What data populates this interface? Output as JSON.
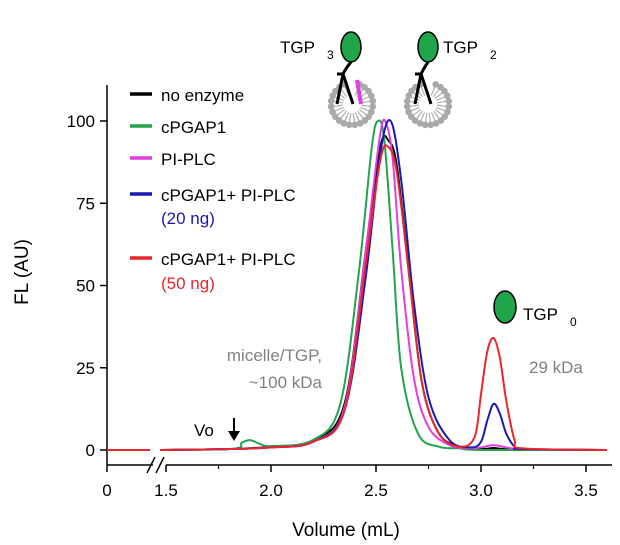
{
  "chart_data": {
    "type": "line",
    "xlabel": "Volume (mL)",
    "ylabel": "FL (AU)",
    "xlim": [
      0,
      3.6
    ],
    "ylim": [
      0,
      108
    ],
    "axis_break": {
      "between": [
        0,
        1.5
      ]
    },
    "xticks": [
      {
        "value": 0,
        "label": "0"
      },
      {
        "value": 1.5,
        "label": "1.5"
      },
      {
        "value": 2.0,
        "label": "2.0"
      },
      {
        "value": 2.5,
        "label": "2.5"
      },
      {
        "value": 3.0,
        "label": "3.0"
      },
      {
        "value": 3.5,
        "label": "3.5"
      }
    ],
    "yticks": [
      {
        "value": 0,
        "label": "0"
      },
      {
        "value": 25,
        "label": "25"
      },
      {
        "value": 50,
        "label": "50"
      },
      {
        "value": 75,
        "label": "75"
      },
      {
        "value": 100,
        "label": "100"
      }
    ],
    "grid": false,
    "legend_position": "top-left",
    "series": [
      {
        "name": "no enzyme",
        "color": "#000000",
        "x": [
          0,
          1.5,
          1.8,
          2.0,
          2.2,
          2.35,
          2.45,
          2.52,
          2.56,
          2.6,
          2.66,
          2.72,
          2.8,
          2.9,
          3.0,
          3.06,
          3.1,
          3.2,
          3.3,
          3.4,
          3.6
        ],
        "y": [
          0,
          0,
          0.3,
          1,
          3,
          14,
          60,
          92,
          94,
          86,
          52,
          20,
          5,
          1,
          0.3,
          0.6,
          0.3,
          0.2,
          0,
          0,
          0
        ]
      },
      {
        "name": "cPGAP1",
        "color": "#22a34c",
        "x": [
          0,
          1.5,
          1.82,
          1.86,
          1.9,
          1.95,
          2.0,
          2.2,
          2.33,
          2.42,
          2.48,
          2.51,
          2.54,
          2.58,
          2.62,
          2.7,
          2.8,
          2.9,
          3.0,
          3.6
        ],
        "y": [
          0,
          0,
          0.4,
          2.2,
          3,
          1.8,
          1.2,
          3,
          14,
          55,
          92,
          100,
          94,
          60,
          25,
          5,
          1,
          0.5,
          0,
          0
        ]
      },
      {
        "name": "PI-PLC",
        "color": "#e33fe0",
        "x": [
          0,
          1.5,
          1.8,
          2.0,
          2.2,
          2.35,
          2.45,
          2.52,
          2.55,
          2.58,
          2.62,
          2.68,
          2.75,
          2.85,
          2.95,
          3.0,
          3.06,
          3.12,
          3.2,
          3.6
        ],
        "y": [
          0,
          0,
          0.3,
          0.8,
          2.5,
          13,
          60,
          96,
          99,
          88,
          55,
          22,
          7,
          1.5,
          0.5,
          0.8,
          1.5,
          0.8,
          0.3,
          0
        ]
      },
      {
        "name": "cPGAP1+ PI-PLC (20 ng)",
        "color": "#1a1ab0",
        "x": [
          0,
          1.5,
          1.8,
          2.0,
          2.2,
          2.35,
          2.45,
          2.52,
          2.57,
          2.62,
          2.68,
          2.75,
          2.85,
          2.95,
          3.0,
          3.03,
          3.06,
          3.09,
          3.12,
          3.16,
          3.2,
          3.6
        ],
        "y": [
          0,
          0,
          0.3,
          0.8,
          2.5,
          12,
          52,
          90,
          100,
          82,
          45,
          16,
          3,
          0.8,
          2.5,
          9,
          14,
          11,
          5,
          1,
          0.3,
          0
        ]
      },
      {
        "name": "cPGAP1+ PI-PLC (50 ng)",
        "color": "#e8262c",
        "x": [
          0,
          1.5,
          1.8,
          2.0,
          2.2,
          2.35,
          2.45,
          2.52,
          2.56,
          2.6,
          2.66,
          2.72,
          2.8,
          2.9,
          2.97,
          3.0,
          3.03,
          3.06,
          3.09,
          3.12,
          3.16,
          3.2,
          3.6
        ],
        "y": [
          0,
          0,
          0.3,
          0.8,
          2.5,
          12,
          56,
          88,
          92,
          84,
          52,
          20,
          5,
          1,
          4,
          17,
          30,
          34,
          28,
          15,
          3,
          0.5,
          0
        ]
      }
    ]
  },
  "legend": {
    "items": [
      {
        "line1": "no enzyme",
        "line2": "",
        "line2_color": "#000000",
        "color": "#000000"
      },
      {
        "line1": "cPGAP1",
        "line2": "",
        "line2_color": "#000000",
        "color": "#22a34c"
      },
      {
        "line1": "PI-PLC",
        "line2": "",
        "line2_color": "#000000",
        "color": "#e33fe0"
      },
      {
        "line1": "cPGAP1+ PI-PLC",
        "line2": "(20 ng)",
        "line2_color": "#1a1ab0",
        "color": "#1a1ab0"
      },
      {
        "line1": "cPGAP1+ PI-PLC",
        "line2": "(50 ng)",
        "line2_color": "#e8262c",
        "color": "#e8262c"
      }
    ]
  },
  "annotations": {
    "micelle_line1": "micelle/TGP,",
    "micelle_line2": "~100 kDa",
    "vo": "Vo",
    "kda29": "29 kDa",
    "tgp3": "TGP",
    "tgp3_sub": "3",
    "tgp2": "TGP",
    "tgp2_sub": "2",
    "tgp0": "TGP",
    "tgp0_sub": "0"
  },
  "colors": {
    "protein_green": "#1fa64a",
    "micelle_gray": "#a9a9a9"
  }
}
